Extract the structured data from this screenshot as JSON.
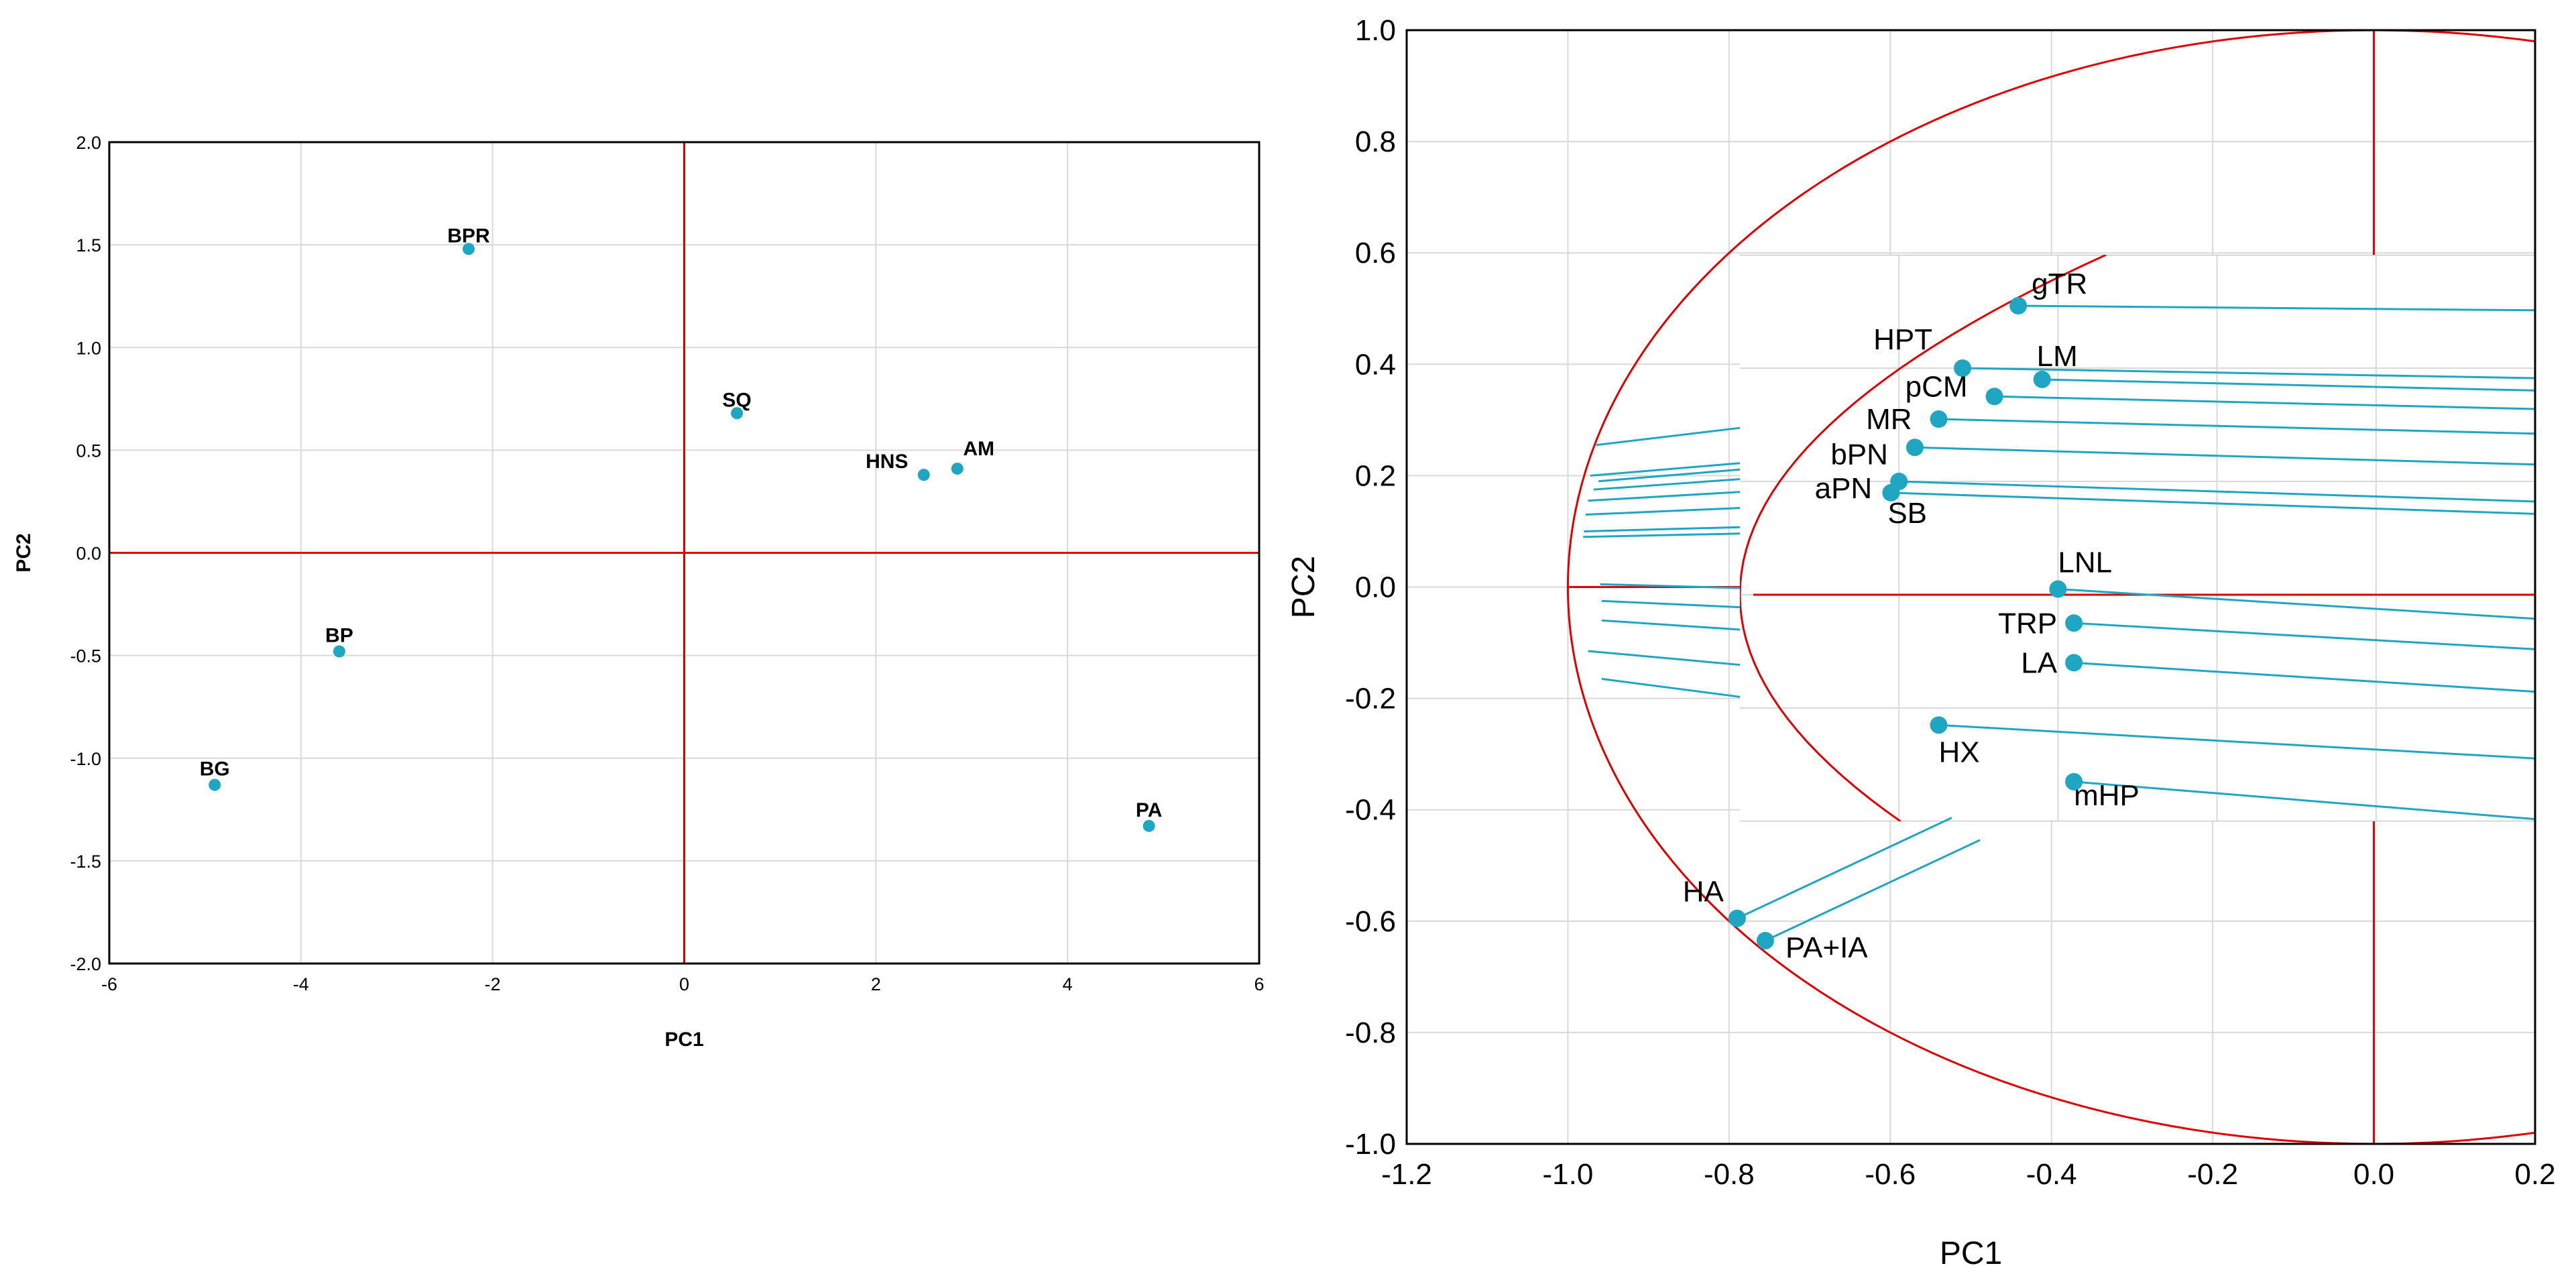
{
  "chart_data": [
    {
      "type": "scatter",
      "title": "",
      "xlabel": "PC1",
      "ylabel": "PC2",
      "xlim": [
        -6,
        6
      ],
      "ylim": [
        -2.0,
        2.0
      ],
      "xticks": [
        "-6",
        "-4",
        "-2",
        "0",
        "2",
        "4",
        "6"
      ],
      "yticks": [
        "2.0",
        "1.5",
        "1.0",
        "0.5",
        "0.0",
        "-0.5",
        "-1.0",
        "-1.5",
        "-2.0"
      ],
      "grid": true,
      "points": [
        {
          "label": "BPR",
          "x": -2.25,
          "y": 1.48
        },
        {
          "label": "SQ",
          "x": 0.55,
          "y": 0.68
        },
        {
          "label": "HNS",
          "x": 2.5,
          "y": 0.38
        },
        {
          "label": "AM",
          "x": 2.85,
          "y": 0.41
        },
        {
          "label": "BP",
          "x": -3.6,
          "y": -0.48
        },
        {
          "label": "BG",
          "x": -4.9,
          "y": -1.13
        },
        {
          "label": "PA",
          "x": 4.85,
          "y": -1.33
        }
      ]
    },
    {
      "type": "scatter",
      "title": "",
      "xlabel": "PC1",
      "ylabel": "PC2",
      "xlim": [
        -1.2,
        0.2
      ],
      "ylim": [
        -1.0,
        1.0
      ],
      "xticks": [
        "-1.2",
        "-1.0",
        "-0.8",
        "-0.6",
        "-0.4",
        "-0.2",
        "0.0",
        "0.2"
      ],
      "yticks": [
        "1.0",
        "0.8",
        "0.6",
        "0.4",
        "0.2",
        "0.0",
        "-0.2",
        "-0.4",
        "-0.6",
        "-0.8",
        "-1.0"
      ],
      "grid": true,
      "inset": {
        "xlim": [
          -1.0,
          -0.9
        ],
        "ylim": [
          -0.2,
          0.3
        ]
      },
      "points": [
        {
          "label": "gTR",
          "x": -0.965,
          "y": 0.255
        },
        {
          "label": "HPT",
          "x": -0.972,
          "y": 0.2
        },
        {
          "label": "LM",
          "x": -0.962,
          "y": 0.19
        },
        {
          "label": "pCM",
          "x": -0.968,
          "y": 0.175
        },
        {
          "label": "MR",
          "x": -0.975,
          "y": 0.155
        },
        {
          "label": "bPN",
          "x": -0.978,
          "y": 0.13
        },
        {
          "label": "aPN",
          "x": -0.98,
          "y": 0.1
        },
        {
          "label": "SB",
          "x": -0.981,
          "y": 0.09
        },
        {
          "label": "LNL",
          "x": -0.96,
          "y": 0.005
        },
        {
          "label": "TRP",
          "x": -0.958,
          "y": -0.025
        },
        {
          "label": "LA",
          "x": -0.958,
          "y": -0.06
        },
        {
          "label": "HX",
          "x": -0.975,
          "y": -0.115
        },
        {
          "label": "mHP",
          "x": -0.958,
          "y": -0.165
        },
        {
          "label": "HA",
          "x": -0.79,
          "y": -0.595
        },
        {
          "label": "PA+IA",
          "x": -0.755,
          "y": -0.635
        }
      ]
    }
  ]
}
